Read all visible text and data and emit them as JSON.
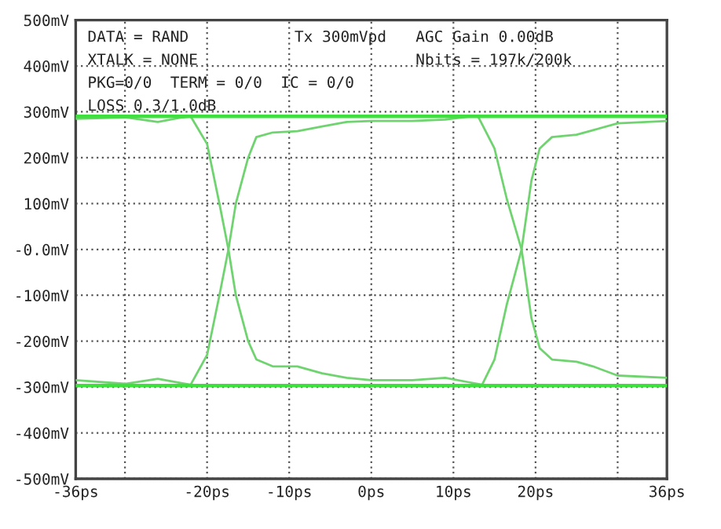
{
  "chart_data": {
    "type": "line",
    "annotations": [
      "DATA = RAND",
      "Tx 300mVpd",
      "AGC Gain 0.00dB",
      "XTALK = NONE",
      "Nbits = 197k/200k",
      "PKG=0/0  TERM = 0/0  IC = 0/0",
      "LOSS 0.3/1.0dB"
    ],
    "series": [
      {
        "color": "#6fd46f",
        "x": [
          -36,
          -30,
          -26,
          -23,
          -22,
          -20,
          -18.5,
          -17.4,
          -16.5,
          -15,
          -14,
          -12,
          -9,
          -6,
          -3,
          0,
          5,
          9,
          12,
          13.5,
          15,
          16.5,
          18.3,
          19.5,
          20.5,
          22,
          25,
          27,
          30,
          36
        ],
        "values": [
          285,
          288,
          278,
          288,
          290,
          230,
          100,
          0,
          -100,
          -200,
          -240,
          -255,
          -255,
          -270,
          -280,
          -285,
          -285,
          -280,
          -290,
          -295,
          -240,
          -120,
          0,
          150,
          220,
          245,
          250,
          260,
          275,
          280
        ]
      },
      {
        "color": "#6fd46f",
        "x": [
          -36,
          -30,
          -26,
          -23,
          -22,
          -20,
          -18.5,
          -17.4,
          -16.5,
          -15,
          -14,
          -12,
          -9,
          -6,
          -3,
          0,
          5,
          9,
          12,
          13,
          15,
          16.5,
          18.3,
          19.5,
          20.5,
          22,
          25,
          27,
          30,
          36
        ],
        "values": [
          -285,
          -293,
          -282,
          -292,
          -295,
          -230,
          -100,
          0,
          100,
          200,
          245,
          255,
          258,
          268,
          278,
          280,
          280,
          283,
          290,
          290,
          220,
          110,
          0,
          -150,
          -215,
          -240,
          -245,
          -255,
          -275,
          -280
        ]
      }
    ],
    "ref_lines": [
      {
        "axis": "y",
        "value": 290,
        "color": "#3ee03e"
      },
      {
        "axis": "y",
        "value": -297,
        "color": "#3ee03e"
      }
    ],
    "xlim": [
      -36,
      36
    ],
    "xticks": [
      {
        "value": -36,
        "label": "-36ps"
      },
      {
        "value": -30,
        "label": null
      },
      {
        "value": -20,
        "label": "-20ps"
      },
      {
        "value": -10,
        "label": "-10ps"
      },
      {
        "value": 0,
        "label": "0ps"
      },
      {
        "value": 10,
        "label": "10ps"
      },
      {
        "value": 20,
        "label": "20ps"
      },
      {
        "value": 30,
        "label": null
      },
      {
        "value": 36,
        "label": "36ps"
      }
    ],
    "ylim": [
      -500,
      500
    ],
    "yticks": [
      {
        "value": 500,
        "label": "500mV"
      },
      {
        "value": 400,
        "label": "400mV"
      },
      {
        "value": 300,
        "label": "300mV"
      },
      {
        "value": 200,
        "label": "200mV"
      },
      {
        "value": 100,
        "label": "100mV"
      },
      {
        "value": 0,
        "label": "-0.0mV"
      },
      {
        "value": -100,
        "label": "-100mV"
      },
      {
        "value": -200,
        "label": "-200mV"
      },
      {
        "value": -300,
        "label": "-300mV"
      },
      {
        "value": -400,
        "label": "-400mV"
      },
      {
        "value": -500,
        "label": "-500mV"
      }
    ],
    "grid": true,
    "legend": false,
    "marker": "none",
    "line_style": "solid"
  }
}
